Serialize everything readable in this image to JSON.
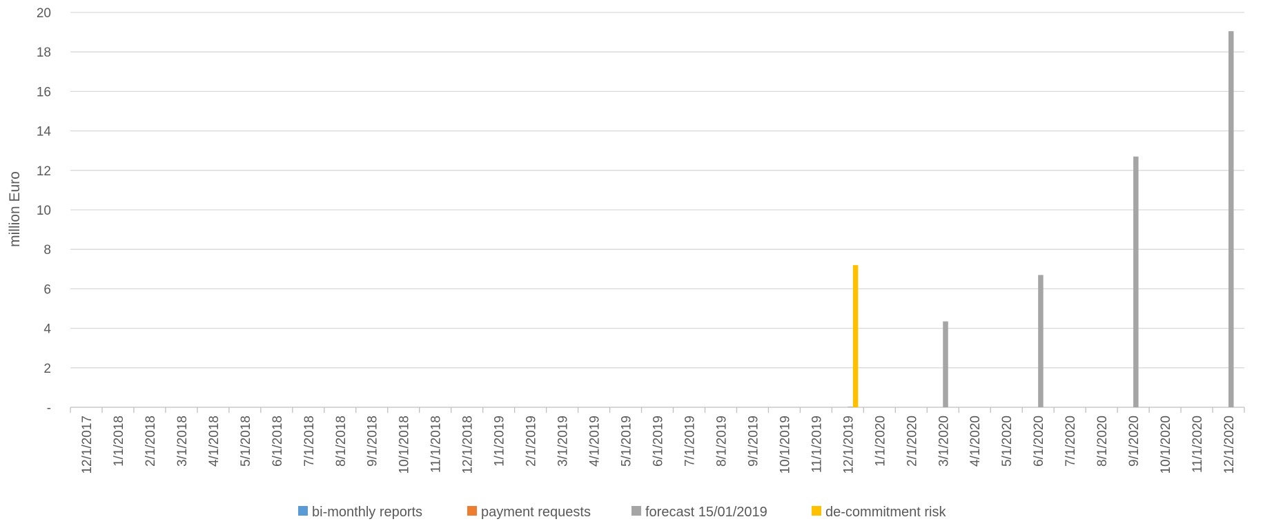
{
  "chart_data": {
    "type": "bar",
    "title": "",
    "xlabel": "",
    "ylabel": "million Euro",
    "ylim": [
      0,
      20
    ],
    "y_ticks": [
      0,
      2,
      4,
      6,
      8,
      10,
      12,
      14,
      16,
      18,
      20
    ],
    "y_tick_labels": [
      "-",
      "2",
      "4",
      "6",
      "8",
      "10",
      "12",
      "14",
      "16",
      "18",
      "20"
    ],
    "grid": true,
    "legend_position": "bottom",
    "categories": [
      "12/1/2017",
      "1/1/2018",
      "2/1/2018",
      "3/1/2018",
      "4/1/2018",
      "5/1/2018",
      "6/1/2018",
      "7/1/2018",
      "8/1/2018",
      "9/1/2018",
      "10/1/2018",
      "11/1/2018",
      "12/1/2018",
      "1/1/2019",
      "2/1/2019",
      "3/1/2019",
      "4/1/2019",
      "5/1/2019",
      "6/1/2019",
      "7/1/2019",
      "8/1/2019",
      "9/1/2019",
      "10/1/2019",
      "11/1/2019",
      "12/1/2019",
      "1/1/2020",
      "2/1/2020",
      "3/1/2020",
      "4/1/2020",
      "5/1/2020",
      "6/1/2020",
      "7/1/2020",
      "8/1/2020",
      "9/1/2020",
      "10/1/2020",
      "11/1/2020",
      "12/1/2020"
    ],
    "series": [
      {
        "name": "bi-monthly reports",
        "color": "#5B9BD5",
        "values": [
          0,
          0,
          0,
          0,
          0,
          0,
          0,
          0,
          0,
          0,
          0,
          0,
          0,
          0,
          0,
          0,
          0,
          0,
          0,
          0,
          0,
          0,
          0,
          0,
          0,
          0,
          0,
          0,
          0,
          0,
          0,
          0,
          0,
          0,
          0,
          0,
          0
        ]
      },
      {
        "name": "payment requests",
        "color": "#ED7D31",
        "values": [
          0,
          0,
          0,
          0,
          0,
          0,
          0,
          0,
          0,
          0,
          0,
          0,
          0,
          0,
          0,
          0,
          0,
          0,
          0,
          0,
          0,
          0,
          0,
          0,
          0,
          0,
          0,
          0,
          0,
          0,
          0,
          0,
          0,
          0,
          0,
          0,
          0
        ]
      },
      {
        "name": "forecast 15/01/2019",
        "color": "#A5A5A5",
        "values": [
          0,
          0,
          0,
          0,
          0,
          0,
          0,
          0,
          0,
          0,
          0,
          0,
          0,
          0,
          0,
          0,
          0,
          0,
          0,
          0,
          0,
          0,
          0,
          0,
          0.03,
          0,
          0,
          4.35,
          0,
          0,
          6.7,
          0,
          0,
          12.7,
          0,
          0,
          19.05
        ]
      },
      {
        "name": "de-commitment risk",
        "color": "#FFC000",
        "values": [
          0,
          0,
          0,
          0,
          0,
          0,
          0,
          0,
          0,
          0,
          0,
          0,
          0,
          0,
          0,
          0,
          0,
          0,
          0,
          0,
          0,
          0,
          0,
          0,
          7.2,
          0,
          0,
          0,
          0,
          0,
          0,
          0,
          0,
          0,
          0,
          0,
          0
        ]
      }
    ]
  }
}
